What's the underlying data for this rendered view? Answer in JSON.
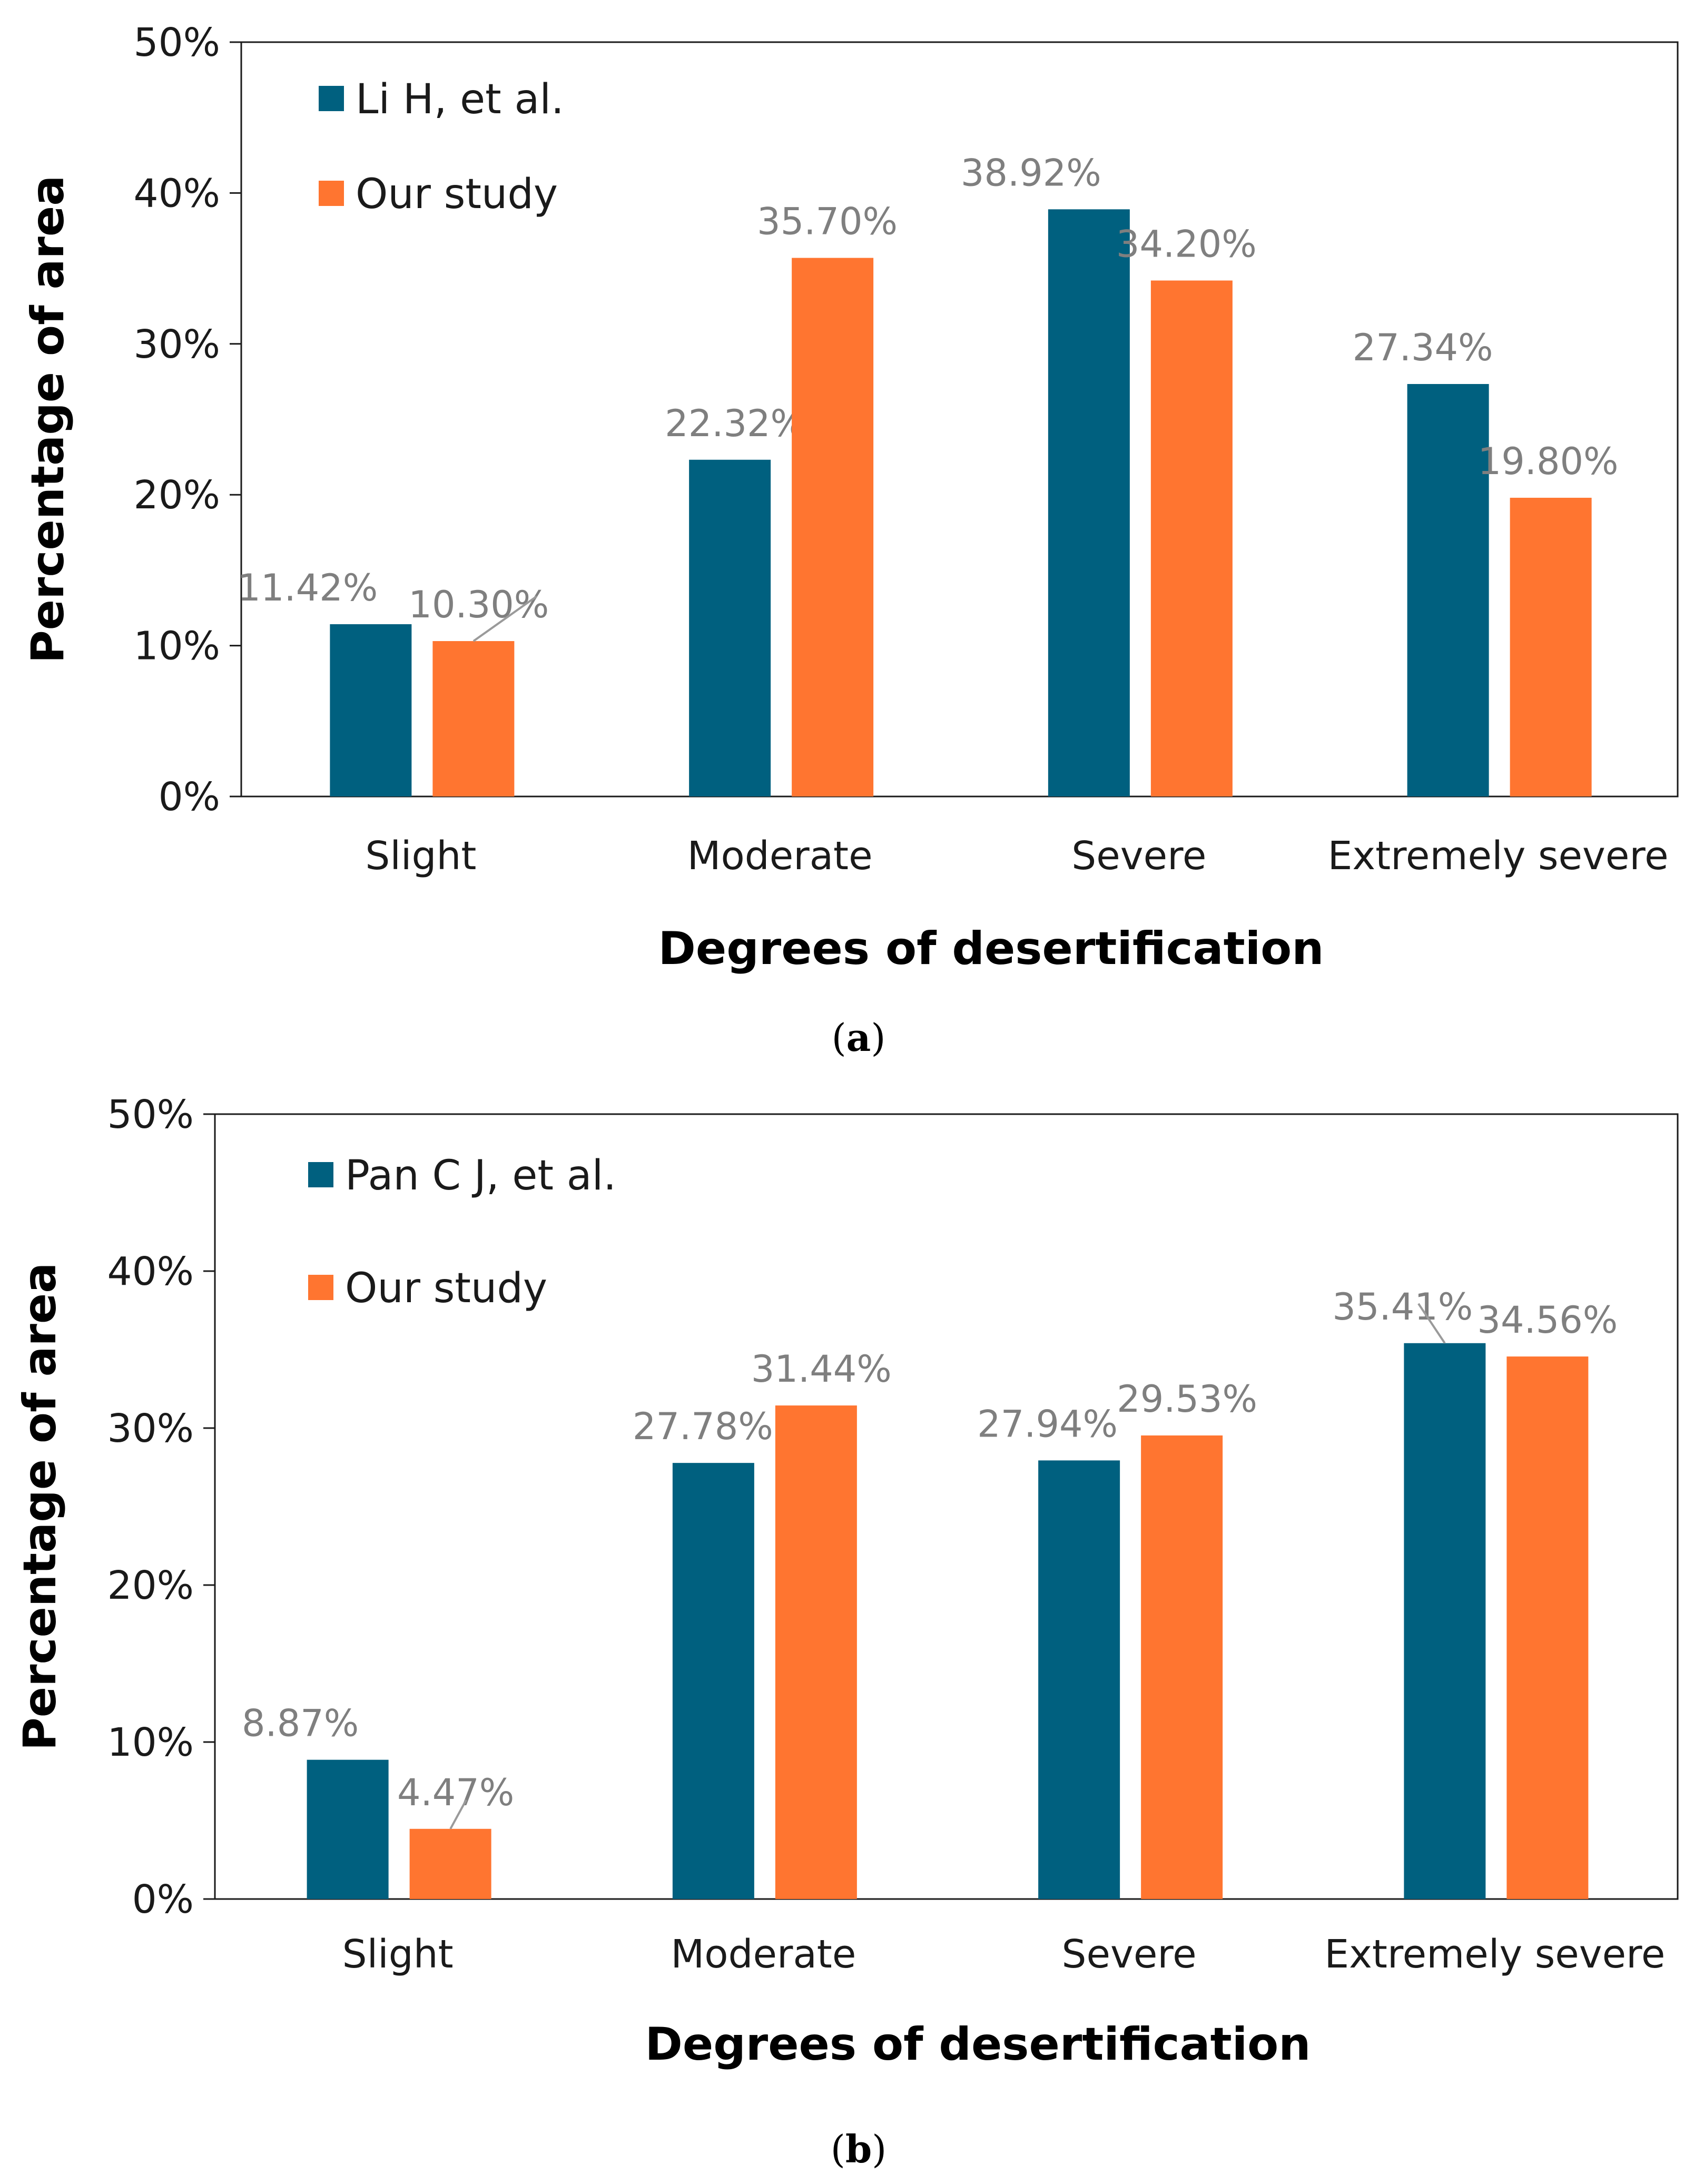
{
  "chart_data": [
    {
      "type": "bar",
      "panel": "a",
      "caption_letter": "a",
      "xlabel": "Degrees of desertification",
      "ylabel": "Percentage of area",
      "ylim": [
        0,
        50
      ],
      "yticks": [
        "0%",
        "10%",
        "20%",
        "30%",
        "40%",
        "50%"
      ],
      "categories": [
        "Slight",
        "Moderate",
        "Severe",
        "Extremely severe"
      ],
      "legend_position": "top-left",
      "series": [
        {
          "name": "Li H, et al.",
          "color": "#00607f",
          "values": [
            11.42,
            22.32,
            38.92,
            27.34
          ],
          "labels": [
            "11.42%",
            "22.32%",
            "38.92%",
            "27.34%"
          ]
        },
        {
          "name": "Our study",
          "color": "#ff7530",
          "values": [
            10.3,
            35.7,
            34.2,
            19.8
          ],
          "labels": [
            "10.30%",
            "35.70%",
            "34.20%",
            "19.80%"
          ]
        }
      ]
    },
    {
      "type": "bar",
      "panel": "b",
      "caption_letter": "b",
      "xlabel": "Degrees of desertification",
      "ylabel": "Percentage of area",
      "ylim": [
        0,
        50
      ],
      "yticks": [
        "0%",
        "10%",
        "20%",
        "30%",
        "40%",
        "50%"
      ],
      "categories": [
        "Slight",
        "Moderate",
        "Severe",
        "Extremely severe"
      ],
      "legend_position": "top-left",
      "series": [
        {
          "name": "Pan C J, et al.",
          "color": "#00607f",
          "values": [
            8.87,
            27.78,
            27.94,
            35.41
          ],
          "labels": [
            "8.87%",
            "27.78%",
            "27.94%",
            "35.41%"
          ]
        },
        {
          "name": "Our study",
          "color": "#ff7530",
          "values": [
            4.47,
            31.44,
            29.53,
            34.56
          ],
          "labels": [
            "4.47%",
            "31.44%",
            "29.53%",
            "34.56%"
          ]
        }
      ]
    }
  ]
}
